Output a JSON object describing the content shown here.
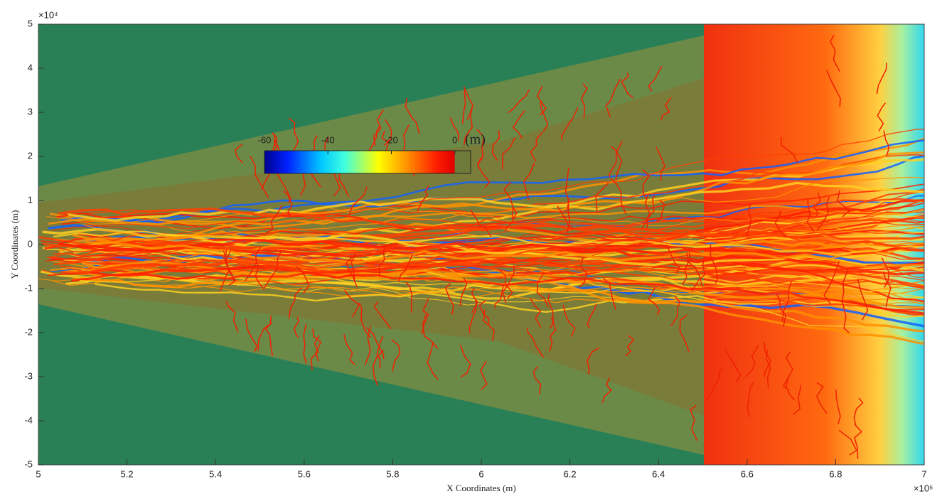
{
  "chart_data": {
    "type": "heatmap",
    "x_label": "X Coordinates (m)",
    "y_label": "Y Coordinates (m)",
    "x_exponent_label": "×10⁵",
    "y_exponent_label": "×10⁴",
    "xlim": [
      5,
      7
    ],
    "xticks": [
      5,
      5.2,
      5.4,
      5.6,
      5.8,
      6,
      6.2,
      6.4,
      6.6,
      6.8,
      7
    ],
    "ylim": [
      -5,
      5
    ],
    "yticks": [
      -5,
      -4,
      -3,
      -2,
      -1,
      0,
      1,
      2,
      3,
      4,
      5
    ],
    "colorbar": {
      "label": "(m)",
      "lim": [
        -60,
        5
      ],
      "ticks": [
        -60,
        -40,
        -20,
        0
      ]
    }
  }
}
